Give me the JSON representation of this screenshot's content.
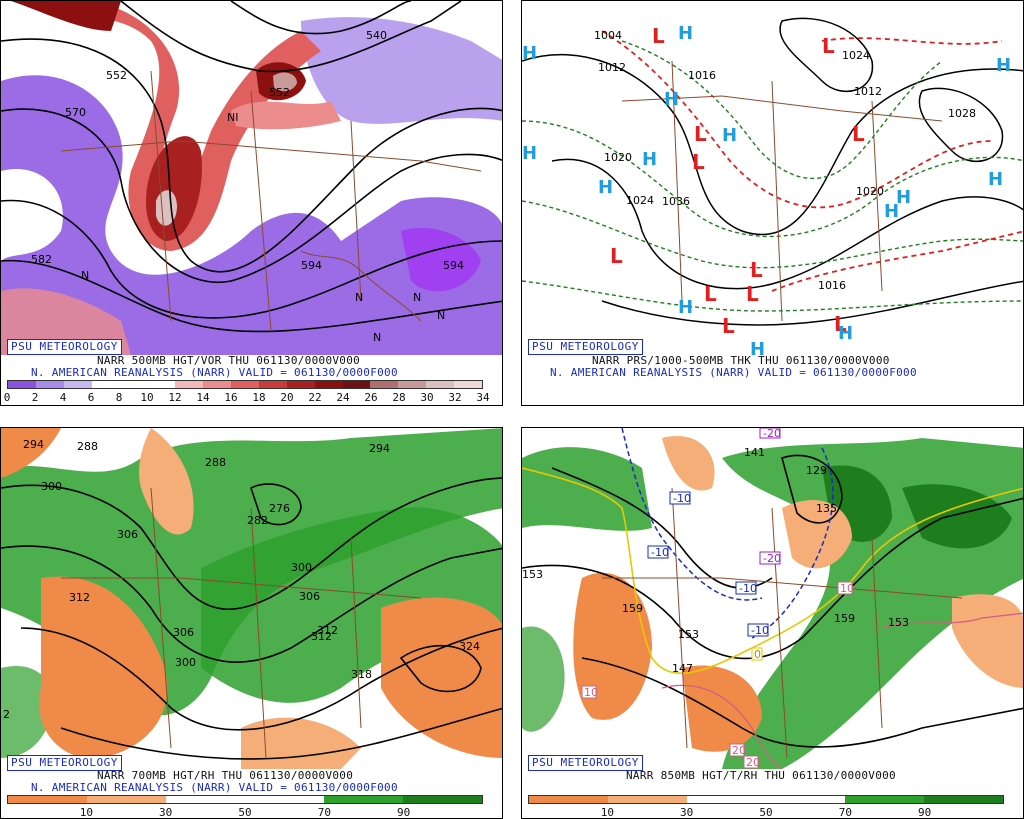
{
  "panels": [
    {
      "logo": "PSU METEOROLOGY",
      "caption_line1": "NARR 500MB HGT/VOR THU 061130/0000V000",
      "caption_line2": "N. AMERICAN REANALYSIS (NARR) VALID = 061130/0000F000",
      "colorbar": {
        "colors": [
          "#8a52e0",
          "#a98aea",
          "#c8b8f2",
          "#ffffff",
          "#ffffff",
          "#ffffff",
          "#f4b8b8",
          "#ec8c8c",
          "#e06060",
          "#c83c3c",
          "#a82020",
          "#8c1010",
          "#701010",
          "#b07070",
          "#c89a9a",
          "#dcc0c0",
          "#eed8d8"
        ],
        "tick_labels": [
          "0",
          "2",
          "4",
          "6",
          "8",
          "10",
          "12",
          "14",
          "16",
          "18",
          "20",
          "22",
          "24",
          "26",
          "28",
          "30",
          "32",
          "34"
        ]
      },
      "map_labels": [
        "570",
        "582",
        "552",
        "540",
        "552",
        "594",
        "594",
        "NI",
        "N",
        "N",
        "N",
        "N",
        "N"
      ]
    },
    {
      "logo": "PSU METEOROLOGY",
      "caption_line1": "NARR PRS/1000-500MB THK THU 061130/0000V000",
      "caption_line2": "N. AMERICAN REANALYSIS (NARR) VALID = 061130/0000F000",
      "map_labels": [
        "1004",
        "1012",
        "1016",
        "1020",
        "1024",
        "1028",
        "1036",
        "1024",
        "1012",
        "1020",
        "1016"
      ]
    },
    {
      "logo": "PSU METEOROLOGY",
      "caption_line1": "NARR 700MB HGT/RH THU 061130/0000V000",
      "caption_line2": "N. AMERICAN REANALYSIS (NARR) VALID = 061130/0000F000",
      "colorbar": {
        "colors": [
          "#f08a48",
          "#f5ae78",
          "#ffffff",
          "#ffffff",
          "#2ea02e",
          "#1e7e1e"
        ],
        "tick_labels": [
          "10",
          "30",
          "50",
          "70",
          "90"
        ]
      },
      "map_labels": [
        "294",
        "288",
        "288",
        "294",
        "300",
        "306",
        "276",
        "282",
        "300",
        "306",
        "312",
        "312",
        "300",
        "306",
        "312",
        "318",
        "324",
        "2"
      ]
    },
    {
      "logo": "PSU METEOROLOGY",
      "caption_line1": "NARR 850MB HGT/T/RH THU 061130/0000V000",
      "colorbar": {
        "colors": [
          "#f08a48",
          "#f5ae78",
          "#ffffff",
          "#ffffff",
          "#2ea02e",
          "#1e7e1e"
        ],
        "tick_labels": [
          "10",
          "30",
          "50",
          "70",
          "90"
        ]
      },
      "map_labels": [
        "141",
        "129",
        "135",
        "153",
        "159",
        "153",
        "147",
        "159",
        "153"
      ],
      "temp_boxes": [
        "-10",
        "-10",
        "-10",
        "-10",
        "-20",
        "-20",
        "10",
        "10",
        "20",
        "20",
        "0"
      ]
    }
  ]
}
